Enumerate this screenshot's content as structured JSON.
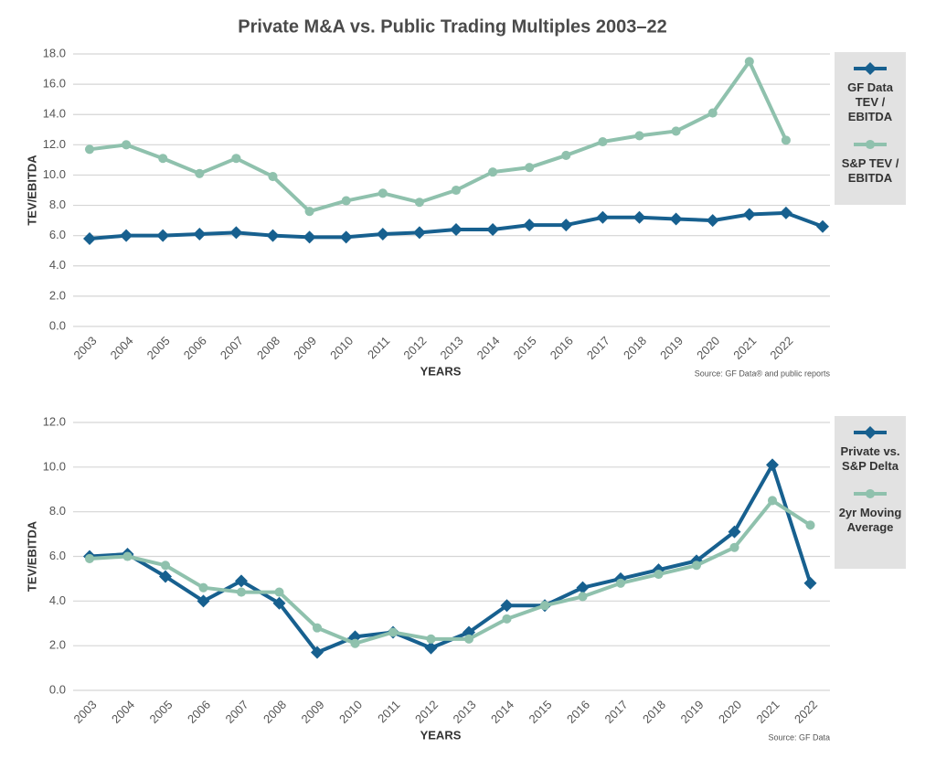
{
  "chart_data": [
    {
      "type": "line",
      "title": "Private M&A vs. Public Trading Multiples 2003–22",
      "y_label": "TEV/EBITDA",
      "x_label": "YEARS",
      "source": "Source: GF Data® and public reports",
      "categories": [
        "2003",
        "2004",
        "2005",
        "2006",
        "2007",
        "2008",
        "2009",
        "2010",
        "2011",
        "2012",
        "2013",
        "2014",
        "2015",
        "2016",
        "2017",
        "2018",
        "2019",
        "2020",
        "2021",
        "2022",
        null
      ],
      "series": [
        {
          "name": "GF Data TEV / EBITDA",
          "color": "#17608f",
          "marker": "diamond",
          "values": [
            5.8,
            6.0,
            6.0,
            6.1,
            6.2,
            6.0,
            5.9,
            5.9,
            6.1,
            6.2,
            6.4,
            6.4,
            6.7,
            6.7,
            7.2,
            7.2,
            7.1,
            7.0,
            7.4,
            7.5,
            6.6
          ]
        },
        {
          "name": "S&P TEV / EBITDA",
          "color": "#8fc1ad",
          "marker": "circle",
          "values": [
            11.7,
            12.0,
            11.1,
            10.1,
            11.1,
            9.9,
            7.6,
            8.3,
            8.8,
            8.2,
            9.0,
            10.2,
            10.5,
            11.3,
            12.2,
            12.6,
            12.9,
            14.1,
            17.5,
            12.3,
            null
          ]
        }
      ],
      "ylim": [
        0,
        18
      ],
      "yticks": [
        {
          "value": 0,
          "label": "0.0"
        },
        {
          "value": 2,
          "label": "2.0"
        },
        {
          "value": 4,
          "label": "4.0"
        },
        {
          "value": 6,
          "label": "6.0"
        },
        {
          "value": 8,
          "label": "8.0"
        },
        {
          "value": 10,
          "label": "10.0"
        },
        {
          "value": 12,
          "label": "12.0"
        },
        {
          "value": 14,
          "label": "14.0"
        },
        {
          "value": 16,
          "label": "16.0"
        },
        {
          "value": 18,
          "label": "18.0"
        }
      ],
      "grid": true,
      "legend": "right"
    },
    {
      "type": "line",
      "y_label": "TEV/EBITDA",
      "x_label": "YEARS",
      "source": "Source: GF Data",
      "categories": [
        "2003",
        "2004",
        "2005",
        "2006",
        "2007",
        "2008",
        "2009",
        "2010",
        "2011",
        "2012",
        "2013",
        "2014",
        "2015",
        "2016",
        "2017",
        "2018",
        "2019",
        "2020",
        "2021",
        "2022"
      ],
      "series": [
        {
          "name": "Private vs. S&P Delta",
          "color": "#17608f",
          "marker": "diamond",
          "values": [
            6.0,
            6.1,
            5.1,
            4.0,
            4.9,
            3.9,
            1.7,
            2.4,
            2.6,
            1.9,
            2.6,
            3.8,
            3.8,
            4.6,
            5.0,
            5.4,
            5.8,
            7.1,
            10.1,
            4.8
          ]
        },
        {
          "name": "2yr Moving Average",
          "color": "#8fc1ad",
          "marker": "circle",
          "values": [
            5.9,
            6.0,
            5.6,
            4.6,
            4.4,
            4.4,
            2.8,
            2.1,
            2.6,
            2.3,
            2.3,
            3.2,
            3.8,
            4.2,
            4.8,
            5.2,
            5.6,
            6.4,
            8.5,
            7.4
          ]
        }
      ],
      "ylim": [
        0,
        12
      ],
      "yticks": [
        {
          "value": 0,
          "label": "0.0"
        },
        {
          "value": 2,
          "label": "2.0"
        },
        {
          "value": 4,
          "label": "4.0"
        },
        {
          "value": 6,
          "label": "6.0"
        },
        {
          "value": 8,
          "label": "8.0"
        },
        {
          "value": 10,
          "label": "10.0"
        },
        {
          "value": 12,
          "label": "12.0"
        }
      ],
      "grid": true,
      "legend": "right"
    }
  ]
}
